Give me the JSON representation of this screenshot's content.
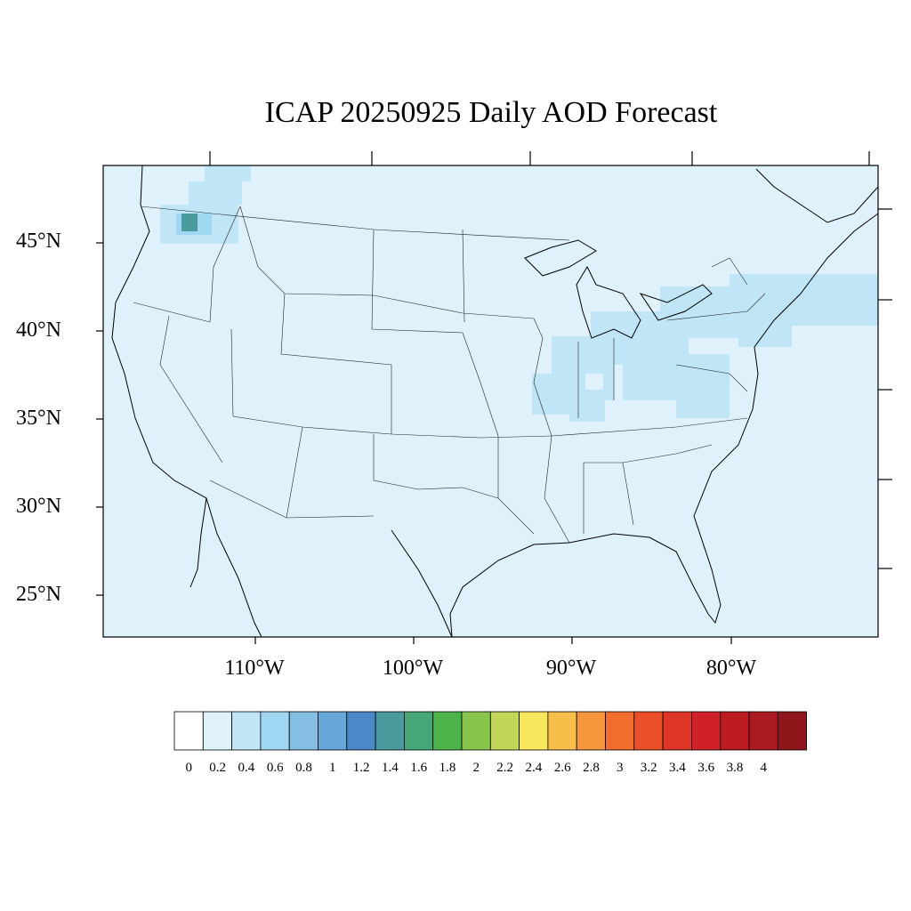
{
  "title": "ICAP 20250925 Daily AOD Forecast",
  "lat_labels": [
    "45°N",
    "40°N",
    "35°N",
    "30°N",
    "25°N"
  ],
  "lon_labels": [
    "110°W",
    "100°W",
    "90°W",
    "80°W"
  ],
  "colorbar": {
    "labels": [
      "0",
      "0.2",
      "0.4",
      "0.6",
      "0.8",
      "1",
      "1.2",
      "1.4",
      "1.6",
      "1.8",
      "2",
      "2.2",
      "2.4",
      "2.6",
      "2.8",
      "3",
      "3.2",
      "3.4",
      "3.6",
      "3.8",
      "4"
    ],
    "colors": [
      "#ffffff",
      "#dff1fb",
      "#bfe5f7",
      "#9fd7f3",
      "#84bfe3",
      "#67a6d9",
      "#4a88c8",
      "#4a9a9e",
      "#47a677",
      "#4cb348",
      "#88c54d",
      "#c2d658",
      "#f6e75c",
      "#f7bf4a",
      "#f6973d",
      "#f26c2b",
      "#ea4f29",
      "#de3627",
      "#d02128",
      "#bc1b22",
      "#aa1a20",
      "#8f161a"
    ]
  },
  "map": {
    "background": "#dff1fb",
    "plume_light": "#bfe5f7",
    "plume_mid": "#84bfe3",
    "plume_core": "#4a9a9e"
  }
}
